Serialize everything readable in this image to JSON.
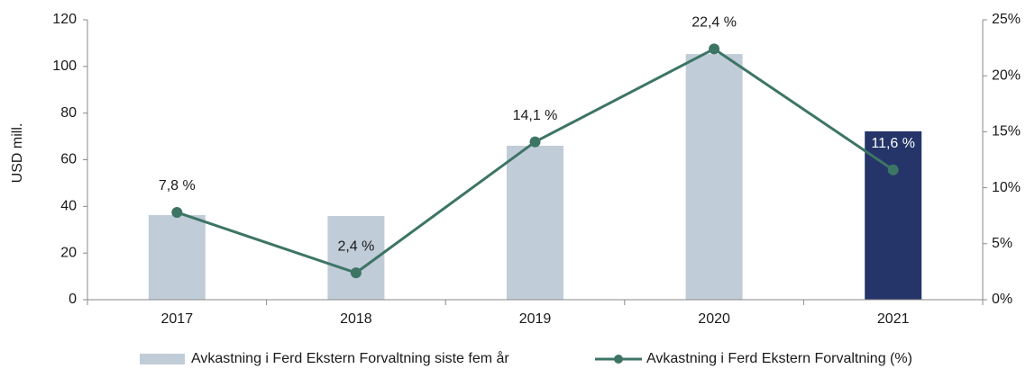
{
  "chart_data": {
    "type": "bar_line",
    "ylabel": "USD mill.",
    "categories": [
      "2017",
      "2018",
      "2019",
      "2020",
      "2021"
    ],
    "series": [
      {
        "name": "Avkastning i Ferd Ekstern Forvaltning siste fem år",
        "type": "bar",
        "color": "#c0ccd8",
        "colors": [
          "#c0ccd8",
          "#c0ccd8",
          "#c0ccd8",
          "#c0ccd8",
          "#253569"
        ],
        "values": [
          36.3,
          35.9,
          66,
          105.3,
          72.2
        ]
      },
      {
        "name": "Avkastning i Ferd Ekstern Forvaltning (%)",
        "type": "line",
        "axis": "y2",
        "color": "#3d7565",
        "values": [
          7.8,
          2.4,
          14.1,
          22.4,
          11.6
        ],
        "value_labels": [
          "7,8 %",
          "2,4 %",
          "14,1 %",
          "22,4 %",
          "11,6 %"
        ]
      }
    ],
    "ylim": [
      0,
      120
    ],
    "yticks": [
      0,
      20,
      40,
      60,
      80,
      100,
      120
    ],
    "y2lim": [
      0,
      25
    ],
    "y2ticks": [
      {
        "value": 0,
        "label": "0%"
      },
      {
        "value": 5,
        "label": "5%"
      },
      {
        "value": 10,
        "label": "10%"
      },
      {
        "value": 15,
        "label": "15%"
      },
      {
        "value": 20,
        "label": "20%"
      },
      {
        "value": 25,
        "label": "25%"
      }
    ],
    "legend": "bottom"
  }
}
